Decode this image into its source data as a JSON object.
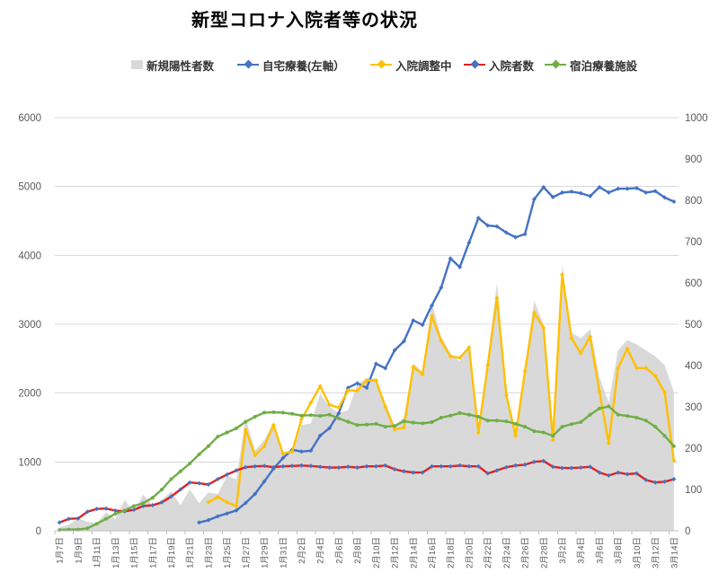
{
  "title": "新型コロナ入院者等の状況",
  "legend": {
    "items": [
      {
        "label": "新規陽性者数",
        "type": "area-swatch",
        "color": "#D9D9D9",
        "marker_color": "#D9D9D9"
      },
      {
        "label": "自宅療養(左軸）",
        "type": "line",
        "color": "#4472C4",
        "marker_color": "#4472C4"
      },
      {
        "label": "入院調整中",
        "type": "line",
        "color": "#FFC000",
        "marker_color": "#FFC000"
      },
      {
        "label": "入院者数",
        "type": "line",
        "color": "#E02020",
        "marker_color": "#4472C4"
      },
      {
        "label": "宿泊療養施設",
        "type": "line",
        "color": "#70AD47",
        "marker_color": "#70AD47"
      }
    ]
  },
  "chart_data": {
    "type": "combo-line-area",
    "title": "新型コロナ入院者等の状況",
    "xlabel": "",
    "ylabel_left": "",
    "ylabel_right": "",
    "grid": true,
    "legend_position": "top",
    "axes": {
      "left": {
        "min": 0,
        "max": 6000,
        "step": 1000
      },
      "right": {
        "min": 0,
        "max": 1000,
        "step": 100
      }
    },
    "x": [
      "1月7日",
      "1月8日",
      "1月9日",
      "1月10日",
      "1月11日",
      "1月12日",
      "1月13日",
      "1月14日",
      "1月15日",
      "1月16日",
      "1月17日",
      "1月18日",
      "1月19日",
      "1月20日",
      "1月21日",
      "1月22日",
      "1月23日",
      "1月24日",
      "1月25日",
      "1月26日",
      "1月27日",
      "1月28日",
      "1月29日",
      "1月30日",
      "1月31日",
      "2月1日",
      "2月2日",
      "2月3日",
      "2月4日",
      "2月5日",
      "2月6日",
      "2月7日",
      "2月8日",
      "2月9日",
      "2月10日",
      "2月11日",
      "2月12日",
      "2月13日",
      "2月14日",
      "2月15日",
      "2月16日",
      "2月17日",
      "2月18日",
      "2月19日",
      "2月20日",
      "2月21日",
      "2月22日",
      "2月23日",
      "2月24日",
      "2月25日",
      "2月26日",
      "2月27日",
      "2月28日",
      "3月1日",
      "3月2日",
      "3月3日",
      "3月4日",
      "3月5日",
      "3月6日",
      "3月7日",
      "3月8日",
      "3月9日",
      "3月10日",
      "3月11日",
      "3月12日",
      "3月13日",
      "3月14日"
    ],
    "x_label_every": 2,
    "series": [
      {
        "name": "新規陽性者数",
        "type": "area",
        "axis": "right",
        "color": "#D9D9D9",
        "values": [
          8,
          15,
          30,
          22,
          18,
          45,
          28,
          75,
          45,
          88,
          60,
          75,
          95,
          62,
          100,
          67,
          93,
          89,
          133,
          125,
          274,
          194,
          220,
          263,
          191,
          187,
          256,
          260,
          332,
          300,
          285,
          292,
          355,
          370,
          368,
          310,
          255,
          275,
          405,
          385,
          553,
          470,
          430,
          410,
          450,
          245,
          420,
          600,
          340,
          240,
          400,
          557,
          500,
          235,
          643,
          480,
          466,
          488,
          372,
          310,
          437,
          462,
          451,
          437,
          422,
          401,
          336
        ]
      },
      {
        "name": "自宅療養(左軸）",
        "type": "line",
        "axis": "left",
        "color": "#4472C4",
        "marker": "diamond",
        "marker_color": "#4472C4",
        "values": [
          null,
          null,
          null,
          null,
          null,
          null,
          null,
          null,
          null,
          null,
          null,
          null,
          null,
          null,
          null,
          120,
          155,
          210,
          252,
          296,
          404,
          535,
          717,
          904,
          1056,
          1178,
          1151,
          1163,
          1382,
          1491,
          1708,
          2078,
          2143,
          2078,
          2426,
          2361,
          2622,
          2752,
          3056,
          2991,
          3273,
          3534,
          3955,
          3830,
          4186,
          4542,
          4433,
          4420,
          4330,
          4263,
          4310,
          4816,
          4990,
          4846,
          4912,
          4925,
          4903,
          4860,
          4990,
          4912,
          4968,
          4968,
          4977,
          4912,
          4933,
          4840,
          4780
        ]
      },
      {
        "name": "入院調整中",
        "type": "line",
        "axis": "right",
        "color": "#FFC000",
        "marker": "diamond",
        "marker_color": "#FFC000",
        "values": [
          null,
          null,
          null,
          null,
          null,
          null,
          null,
          null,
          null,
          null,
          null,
          null,
          null,
          null,
          null,
          null,
          69,
          82,
          69,
          60,
          245,
          183,
          205,
          256,
          187,
          192,
          270,
          310,
          350,
          305,
          298,
          340,
          339,
          364,
          364,
          300,
          245,
          250,
          397,
          379,
          520,
          459,
          422,
          419,
          444,
          238,
          401,
          564,
          328,
          230,
          386,
          528,
          491,
          220,
          620,
          466,
          430,
          470,
          336,
          212,
          394,
          441,
          394,
          394,
          375,
          335,
          170
        ]
      },
      {
        "name": "入院者数",
        "type": "line",
        "axis": "right",
        "color": "#E02020",
        "marker": "diamond",
        "marker_color": "#4472C4",
        "values": [
          20,
          29,
          30,
          46,
          53,
          54,
          49,
          47,
          51,
          60,
          62,
          69,
          83,
          100,
          117,
          115,
          112,
          125,
          136,
          146,
          154,
          156,
          157,
          154,
          156,
          157,
          158,
          157,
          155,
          153,
          153,
          155,
          153,
          156,
          156,
          158,
          149,
          144,
          141,
          141,
          156,
          156,
          156,
          158,
          156,
          156,
          139,
          146,
          154,
          158,
          160,
          167,
          169,
          155,
          152,
          152,
          153,
          155,
          141,
          134,
          141,
          137,
          139,
          123,
          117,
          119,
          125
        ]
      },
      {
        "name": "宿泊療養施設",
        "type": "line",
        "axis": "right",
        "color": "#70AD47",
        "marker": "circle",
        "marker_color": "#70AD47",
        "values": [
          2,
          3,
          3,
          6,
          17,
          29,
          41,
          49,
          60,
          67,
          80,
          100,
          125,
          144,
          163,
          185,
          205,
          228,
          238,
          248,
          264,
          276,
          286,
          287,
          286,
          283,
          279,
          280,
          278,
          281,
          272,
          264,
          256,
          257,
          259,
          252,
          254,
          265,
          262,
          260,
          263,
          274,
          279,
          285,
          281,
          276,
          267,
          267,
          265,
          259,
          252,
          241,
          238,
          230,
          252,
          258,
          263,
          281,
          296,
          301,
          281,
          278,
          274,
          267,
          252,
          230,
          205
        ]
      }
    ]
  }
}
